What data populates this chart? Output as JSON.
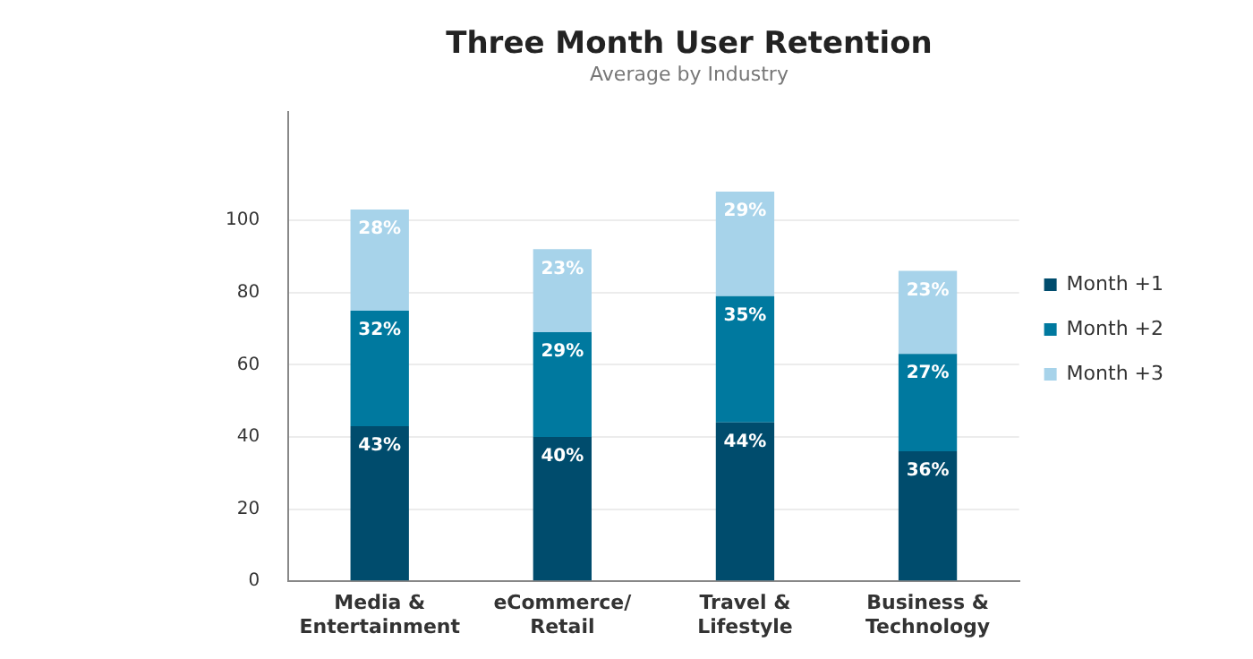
{
  "chart_data": {
    "type": "bar",
    "title": "Three Month User Retention",
    "subtitle": "Average by Industry",
    "categories": [
      "Media & Entertainment",
      "eCommerce/Retail",
      "Travel & Lifestyle",
      "Business & Technology"
    ],
    "series": [
      {
        "name": "Month +1",
        "color": "#004c6d",
        "values": [
          43,
          40,
          44,
          36
        ],
        "value_labels": [
          "43%",
          "40%",
          "44%",
          "36%"
        ]
      },
      {
        "name": "Month +2",
        "color": "#00799f",
        "values": [
          32,
          29,
          35,
          27
        ],
        "value_labels": [
          "32%",
          "29%",
          "35%",
          "27%"
        ]
      },
      {
        "name": "Month +3",
        "color": "#a7d3ea",
        "values": [
          28,
          23,
          29,
          23
        ],
        "value_labels": [
          "28%",
          "23%",
          "29%",
          "23%"
        ]
      }
    ],
    "stacked": true,
    "ylim": [
      0,
      130
    ],
    "yticks": [
      0,
      20,
      40,
      60,
      80,
      100
    ],
    "grid": "y",
    "legend": "right"
  }
}
